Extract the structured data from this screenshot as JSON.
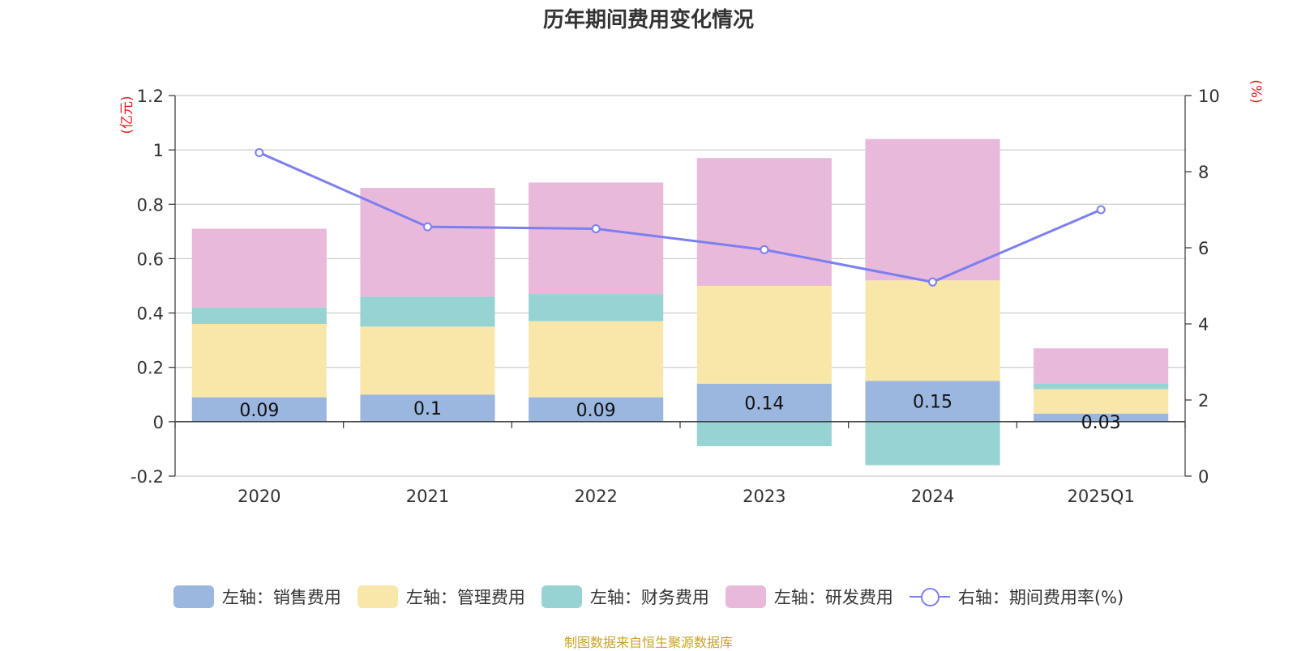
{
  "title": "历年期间费用变化情况",
  "source": "制图数据来自恒生聚源数据库",
  "left_unit": "(亿元)",
  "right_unit": "(%)",
  "legend": [
    {
      "label": "左轴：销售费用",
      "color": "#9bb7e0"
    },
    {
      "label": "左轴：管理费用",
      "color": "#f8e7a8"
    },
    {
      "label": "左轴：财务费用",
      "color": "#97d3d3"
    },
    {
      "label": "左轴：研发费用",
      "color": "#e8b9da"
    },
    {
      "label": "右轴：期间费用率(%)",
      "color": "#7b7ff0"
    }
  ],
  "chart_data": {
    "type": "bar",
    "stacked": true,
    "categories": [
      "2020",
      "2021",
      "2022",
      "2023",
      "2024",
      "2025Q1"
    ],
    "y_left": {
      "label": "(亿元)",
      "ylim": [
        -0.2,
        1.2
      ],
      "ticks": [
        -0.2,
        0,
        0.2,
        0.4,
        0.6,
        0.8,
        1,
        1.2
      ]
    },
    "y_right": {
      "label": "(%)",
      "ylim": [
        0,
        10
      ],
      "ticks": [
        0,
        2,
        4,
        6,
        8,
        10
      ]
    },
    "series": [
      {
        "name": "左轴：销售费用",
        "type": "bar",
        "color": "#9bb7e0",
        "values": [
          0.09,
          0.1,
          0.09,
          0.14,
          0.15,
          0.03
        ],
        "data_labels": [
          "0.09",
          "0.1",
          "0.09",
          "0.14",
          "0.15",
          "0.03"
        ]
      },
      {
        "name": "左轴：管理费用",
        "type": "bar",
        "color": "#f8e7a8",
        "values": [
          0.27,
          0.25,
          0.28,
          0.36,
          0.37,
          0.09
        ]
      },
      {
        "name": "左轴：财务费用",
        "type": "bar",
        "color": "#97d3d3",
        "values": [
          0.06,
          0.11,
          0.1,
          -0.09,
          -0.16,
          0.02
        ]
      },
      {
        "name": "左轴：研发费用",
        "type": "bar",
        "color": "#e8b9da",
        "values": [
          0.29,
          0.4,
          0.41,
          0.47,
          0.52,
          0.13
        ]
      },
      {
        "name": "右轴：期间费用率(%)",
        "type": "line",
        "axis": "right",
        "color": "#7b7ff0",
        "values": [
          8.5,
          6.55,
          6.5,
          5.95,
          5.1,
          7.0
        ]
      }
    ],
    "grid": true,
    "legend_position": "bottom"
  }
}
